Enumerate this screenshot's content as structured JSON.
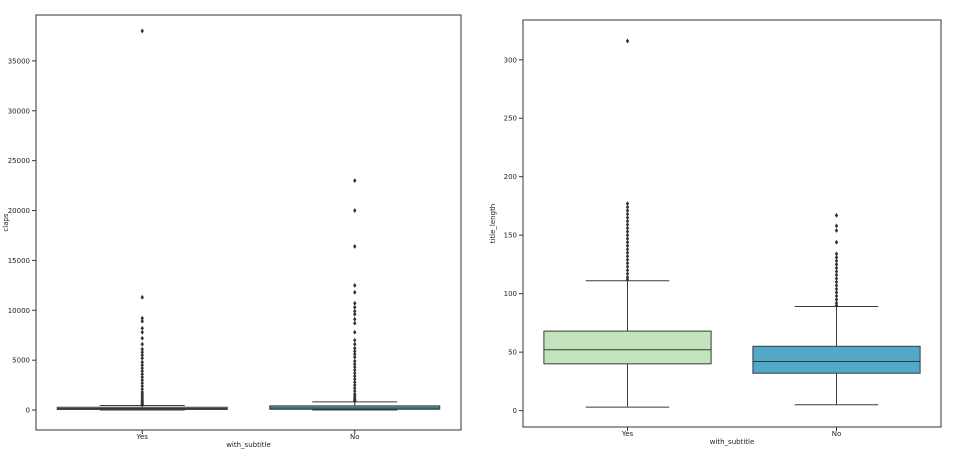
{
  "chart_data": [
    {
      "type": "boxplot",
      "xlabel": "with_subtitle",
      "ylabel": "claps",
      "ylim": [
        -2000,
        39600
      ],
      "yticks": [
        0,
        5000,
        10000,
        15000,
        20000,
        25000,
        30000,
        35000
      ],
      "categories": [
        "Yes",
        "No"
      ],
      "series": [
        {
          "category": "Yes",
          "color": "#c3e3bd",
          "q1": 60,
          "median": 150,
          "q3": 280,
          "whisker_low": 0,
          "whisker_high": 460,
          "outliers": [
            38000,
            11300,
            9200,
            8900,
            8200,
            7800,
            7200,
            6600,
            6100,
            5800,
            5500,
            5200,
            4800,
            4500,
            4200,
            3900,
            3600,
            3300,
            3000,
            2700,
            2400,
            2100,
            1800,
            1600,
            1400,
            1200,
            1000,
            850,
            700,
            600,
            520
          ]
        },
        {
          "category": "No",
          "color": "#52a8c9",
          "q1": 80,
          "median": 200,
          "q3": 420,
          "whisker_low": 0,
          "whisker_high": 820,
          "outliers": [
            23000,
            20000,
            16400,
            12500,
            11800,
            10700,
            10300,
            9900,
            9600,
            9100,
            8700,
            7800,
            7000,
            6600,
            6200,
            5900,
            5600,
            5300,
            4900,
            4600,
            4300,
            4000,
            3700,
            3400,
            3100,
            2800,
            2500,
            2200,
            1900,
            1600,
            1400,
            1200,
            1050,
            950,
            880
          ]
        }
      ]
    },
    {
      "type": "boxplot",
      "xlabel": "with_subtitle",
      "ylabel": "title_length",
      "ylim": [
        -14,
        334
      ],
      "yticks": [
        0,
        50,
        100,
        150,
        200,
        250,
        300
      ],
      "categories": [
        "Yes",
        "No"
      ],
      "series": [
        {
          "category": "Yes",
          "color": "#c3e3bd",
          "q1": 40,
          "median": 52,
          "q3": 68,
          "whisker_low": 3,
          "whisker_high": 111,
          "outliers": [
            316,
            177,
            174,
            171,
            168,
            165,
            162,
            159,
            156,
            153,
            150,
            147,
            144,
            141,
            138,
            135,
            132,
            129,
            126,
            123,
            120,
            117,
            114,
            112
          ]
        },
        {
          "category": "No",
          "color": "#52a8c9",
          "q1": 32,
          "median": 42,
          "q3": 55,
          "whisker_low": 5,
          "whisker_high": 89,
          "outliers": [
            167,
            158,
            154,
            144,
            134,
            131,
            128,
            125,
            122,
            119,
            116,
            113,
            110,
            107,
            104,
            101,
            98,
            95,
            92,
            90
          ]
        }
      ]
    }
  ]
}
